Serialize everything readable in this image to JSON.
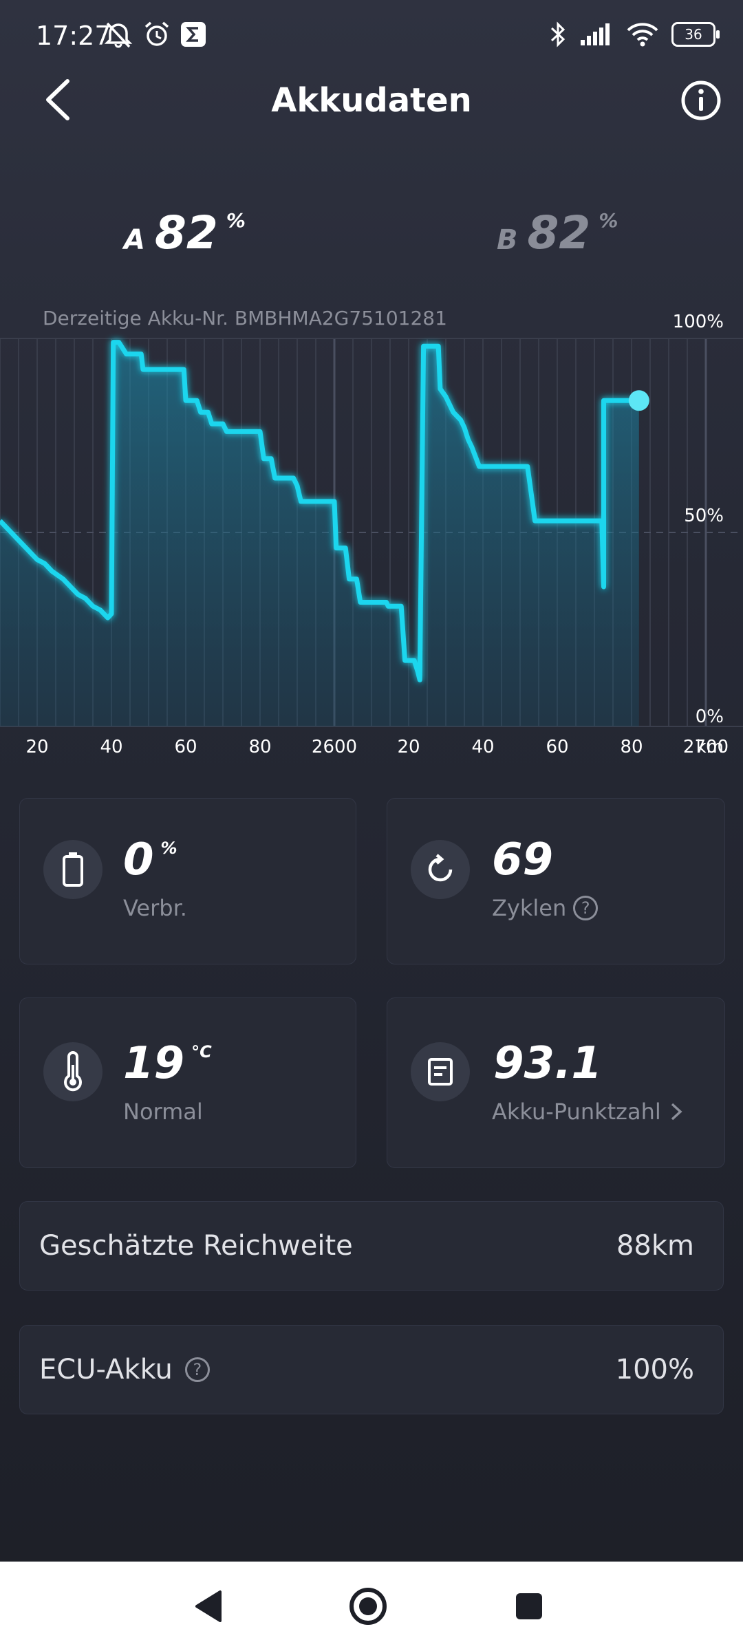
{
  "status_bar": {
    "time": "17:27",
    "icons_left": [
      "muted-bell-icon",
      "alarm-icon",
      "sigma-app-icon"
    ],
    "icons_right": [
      "bluetooth-icon",
      "signal-icon",
      "wifi-icon"
    ],
    "battery_level": "36"
  },
  "header": {
    "title": "Akkudaten"
  },
  "batteries": {
    "a": {
      "letter": "A",
      "value": "82",
      "unit": "%"
    },
    "b": {
      "letter": "B",
      "value": "82",
      "unit": "%"
    }
  },
  "battery_number": "Derzeitige Akku-Nr. BMBHMA2G75101281",
  "chart_data": {
    "type": "line",
    "xlabel": "km",
    "x_ticks": [
      "20",
      "40",
      "60",
      "80",
      "2600",
      "20",
      "40",
      "60",
      "80",
      "2700"
    ],
    "y_ticks": [
      "100%",
      "50%",
      "0%"
    ],
    "ylim": [
      0,
      100
    ],
    "xlim": [
      2510,
      2710
    ],
    "grid": true,
    "accent_color": "#1ad6ee",
    "series": [
      {
        "x": [
          2510,
          2513,
          2515,
          2517,
          2520,
          2522,
          2524,
          2527,
          2529,
          2531,
          2533,
          2535,
          2537,
          2538,
          2539,
          2540,
          2540.5,
          2542,
          2544,
          2546,
          2548,
          2548.5,
          2553,
          2559.5,
          2560,
          2563,
          2564,
          2566,
          2567,
          2570,
          2571,
          2580,
          2581,
          2583,
          2584,
          2589,
          2590,
          2591,
          2600,
          2600.5,
          2603,
          2604,
          2606,
          2607,
          2614,
          2614.5,
          2616,
          2618,
          2619,
          2620,
          2621,
          2621.5,
          2622.5,
          2623,
          2624,
          2628,
          2628.5,
          2630,
          2631,
          2632,
          2634,
          2635,
          2636,
          2637,
          2639,
          2639.5,
          2652,
          2654,
          2654.5,
          2672,
          2672.5,
          2672.5,
          2673,
          2682
        ],
        "y": [
          53,
          50,
          48,
          46,
          43,
          42,
          40,
          38,
          36,
          34,
          33,
          31,
          30,
          29,
          28,
          29,
          99,
          99,
          96,
          96,
          96,
          92,
          92,
          92,
          84,
          84,
          81,
          81,
          78,
          78,
          76,
          76,
          69,
          69,
          64,
          64,
          62,
          58,
          58,
          46,
          46,
          38,
          38,
          32,
          32,
          31,
          31,
          31,
          17,
          17,
          17,
          17,
          14,
          12,
          98,
          98,
          87,
          85,
          83,
          81,
          79,
          77,
          74,
          72,
          67,
          67,
          67,
          53,
          53,
          53,
          36,
          84,
          84,
          84
        ]
      }
    ]
  },
  "cards": {
    "consumption": {
      "icon": "battery-icon",
      "value": "0",
      "unit": "%",
      "label": "Verbr."
    },
    "cycles": {
      "icon": "refresh-icon",
      "value": "69",
      "label": "Zyklen"
    },
    "temperature": {
      "icon": "thermometer-icon",
      "value": "19",
      "unit": "°C",
      "label": "Normal"
    },
    "score": {
      "icon": "report-icon",
      "value": "93.1",
      "label": "Akku-Punktzahl"
    }
  },
  "range": {
    "label": "Geschätzte Reichweite",
    "value": "88km"
  },
  "ecu": {
    "label": "ECU-Akku",
    "value": "100%"
  },
  "nav": {
    "icons": [
      "back-triangle-icon",
      "home-circle-icon",
      "recents-square-icon"
    ]
  }
}
